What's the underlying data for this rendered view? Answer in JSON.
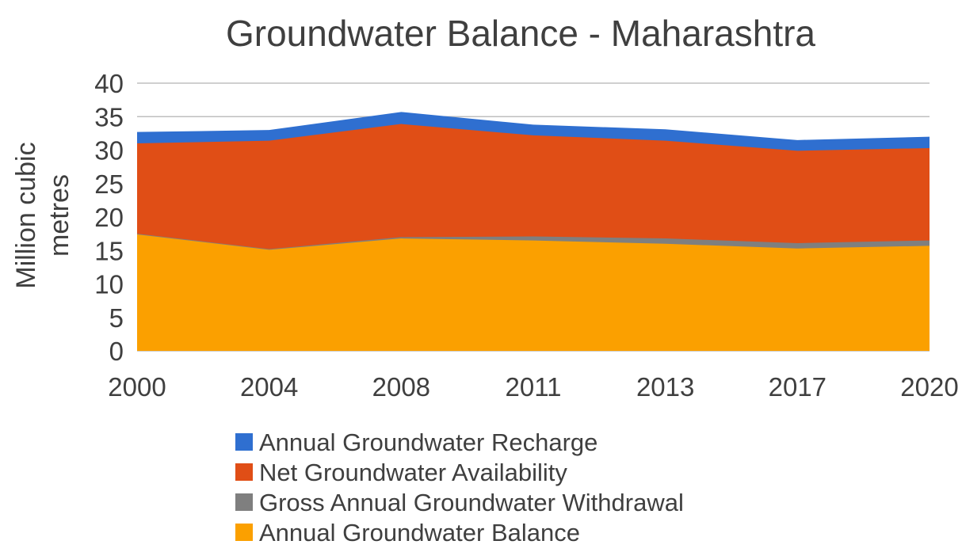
{
  "chart_data": {
    "type": "area",
    "title": "Groundwater Balance - Maharashtra",
    "xlabel": "",
    "ylabel": "Million cubic metres",
    "ylabel_lines": [
      "Million cubic",
      "metres"
    ],
    "categories": [
      "2000",
      "2004",
      "2008",
      "2011",
      "2013",
      "2017",
      "2020"
    ],
    "y_ticks": [
      "0",
      "5",
      "10",
      "15",
      "20",
      "25",
      "30",
      "35",
      "40"
    ],
    "ylim": [
      0,
      40
    ],
    "grid": true,
    "legend_position": "bottom",
    "series": [
      {
        "name": "Annual Groundwater Recharge",
        "color": "#2f6fd0",
        "values": [
          32.7,
          33.0,
          35.7,
          33.8,
          33.1,
          31.5,
          32.0
        ]
      },
      {
        "name": "Net Groundwater Availability",
        "color": "#e04e16",
        "values": [
          31.0,
          31.4,
          33.9,
          32.2,
          31.4,
          29.9,
          30.3
        ]
      },
      {
        "name": "Gross Annual Groundwater Withdrawal",
        "color": "#7f7f7f",
        "values": [
          17.5,
          15.2,
          17.0,
          17.1,
          16.8,
          16.1,
          16.5
        ]
      },
      {
        "name": "Annual Groundwater Balance",
        "color": "#fba000",
        "values": [
          17.4,
          15.1,
          16.8,
          16.5,
          16.0,
          15.3,
          15.7
        ]
      }
    ]
  }
}
